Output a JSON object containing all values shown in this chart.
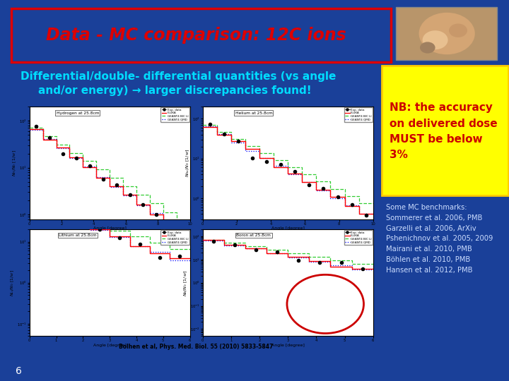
{
  "bg_color": "#1a4099",
  "title_text": "Data - MC comparison: 12C ions",
  "title_color": "#dd0000",
  "title_border": "#dd0000",
  "subtitle_line1": "Differential/double- differential quantities (vs angle",
  "subtitle_line2": "and/or energy) → larger discrepancies found!",
  "subtitle_color": "#00ddff",
  "nb_box_color": "#ffff00",
  "nb_text": "NB: the accuracy\non delivered dose\nMUST be below\n3%",
  "nb_text_color": "#cc0000",
  "refs_color": "#ccddff",
  "refs_text": "Some MC benchmarks:\nSommerer et al. 2006, PMB\nGarzelli et al. 2006, ArXiv\nPshenichnov et al. 2005, 2009\nMairani et al. 2010, PMB\nBöhlen et al. 2010, PMB\nHansen et al. 2012, PMB",
  "slide_number": "6",
  "slide_number_color": "#ffffff",
  "bolhen_ref": "Bolhen et al, Phys. Med. Biol. 55 (2010) 5833-5847"
}
